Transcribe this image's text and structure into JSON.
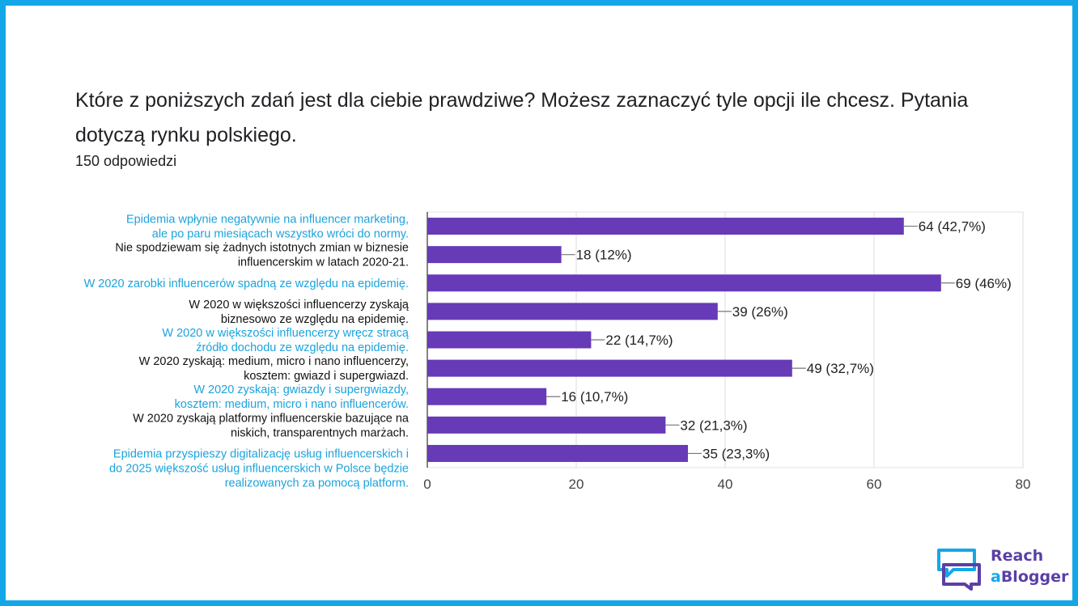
{
  "header": {
    "question": "Które z poniższych zdań jest dla ciebie prawdziwe? Możesz zaznaczyć tyle opcji ile chcesz. Pytania dotyczą rynku polskiego.",
    "responses": "150 odpowiedzi"
  },
  "colors": {
    "frame": "#14a7e8",
    "bar": "#673ab7",
    "label_blue": "#1ba3dd",
    "label_black": "#111111"
  },
  "chart_data": {
    "type": "bar",
    "orientation": "horizontal",
    "title": "",
    "xlabel": "",
    "ylabel": "",
    "xlim": [
      0,
      80
    ],
    "xticks": [
      0,
      20,
      40,
      60,
      80
    ],
    "grid": true,
    "categories": [
      [
        "Epidemia wpłynie negatywnie na influencer marketing,",
        "ale po paru miesiącach wszystko wróci do normy."
      ],
      [
        "Nie spodziewam się żadnych istotnych zmian w biznesie",
        "influencerskim w latach 2020-21."
      ],
      [
        "W 2020 zarobki influencerów spadną ze względu na epidemię."
      ],
      [
        "W 2020 w większości influencerzy zyskają",
        "biznesowo ze względu na epidemię."
      ],
      [
        "W 2020 w większości influencerzy wręcz stracą",
        "źródło dochodu ze względu na epidemię."
      ],
      [
        "W 2020 zyskają: medium, micro i nano influencerzy,",
        "kosztem: gwiazd i supergwiazd."
      ],
      [
        "W 2020 zyskają: gwiazdy i supergwiazdy,",
        "kosztem: medium, micro i nano influencerów."
      ],
      [
        "W 2020 zyskają platformy influencerskie bazujące na",
        "niskich, transparentnych marżach."
      ],
      [
        "Epidemia przyspieszy digitalizację usług influencerskich i",
        "do 2025 większość usług influencerskich w Polsce będzie",
        "realizowanych za pomocą platform."
      ]
    ],
    "category_colors": [
      "blue",
      "black",
      "blue",
      "black",
      "blue",
      "black",
      "blue",
      "black",
      "blue"
    ],
    "values": [
      64,
      18,
      69,
      39,
      22,
      49,
      16,
      32,
      35
    ],
    "data_labels": [
      "64 (42,7%)",
      "18 (12%)",
      "69 (46%)",
      "39 (26%)",
      "22 (14,7%)",
      "49 (32,7%)",
      "16 (10,7%)",
      "32 (21,3%)",
      "35 (23,3%)"
    ]
  },
  "logo": {
    "line1": "Reach",
    "line2_prefix": "a",
    "line2_rest": "Blogger"
  }
}
